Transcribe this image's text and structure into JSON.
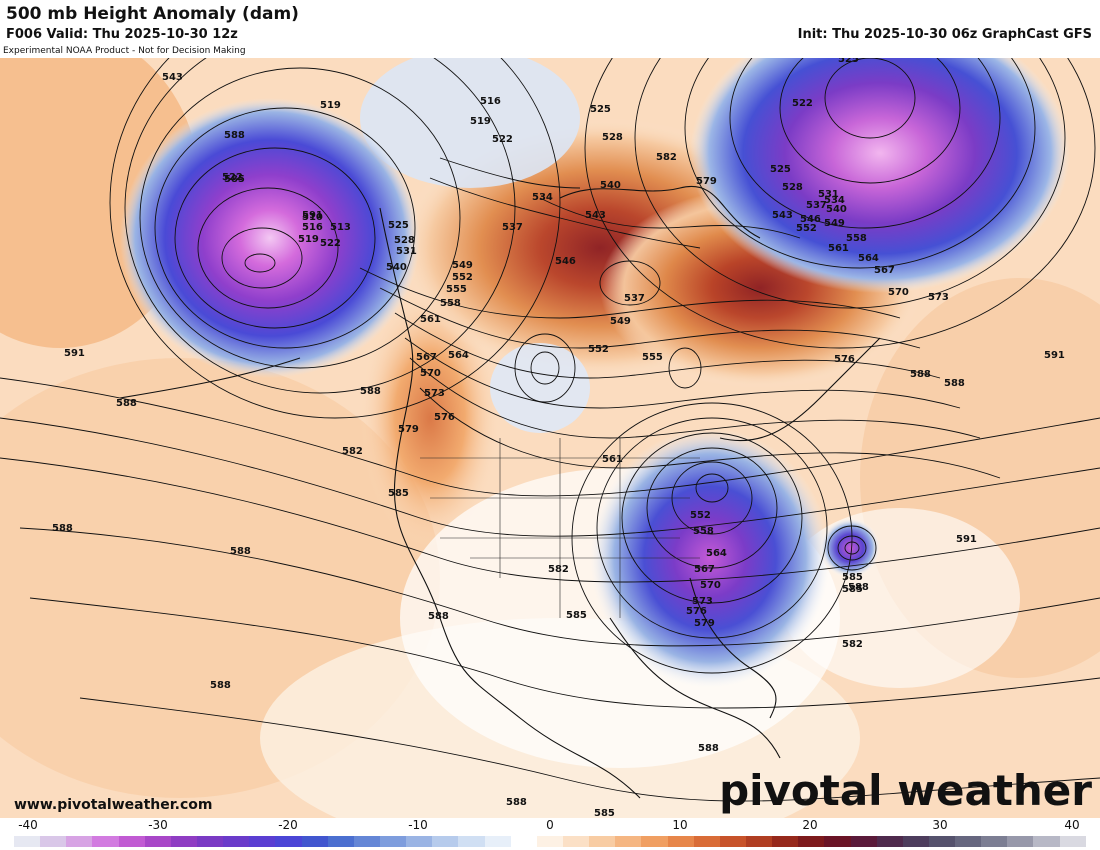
{
  "header": {
    "title": "500 mb Height Anomaly (dam)",
    "valid": "F006 Valid: Thu 2025-10-30 12z",
    "init": "Init: Thu 2025-10-30 06z GraphCast GFS",
    "disclaimer": "Experimental NOAA Product - Not for Decision Making"
  },
  "footer": {
    "website": "www.pivotalweather.com",
    "brand": "pivotal weather"
  },
  "colorbar": {
    "ticks": [
      "-40",
      "-30",
      "-20",
      "-10",
      "0",
      "10",
      "20",
      "30",
      "40"
    ],
    "colors": [
      "#e6e8f2",
      "#d9c7e8",
      "#d7a3e4",
      "#d27be0",
      "#c15bd3",
      "#a847c8",
      "#8f3dc3",
      "#7a3ac4",
      "#6a3bca",
      "#5a3ed2",
      "#4b45d6",
      "#4156cf",
      "#4b6fd0",
      "#6486d6",
      "#7e9ddd",
      "#9ab4e4",
      "#b6cbec",
      "#d0dff3",
      "#e7eff9",
      "#ffffff",
      "#fdf1e4",
      "#fbe0c6",
      "#f8cca3",
      "#f5b682",
      "#f09f62",
      "#e7864a",
      "#d96c37",
      "#c7532a",
      "#b03e22",
      "#96291c",
      "#7d1a1c",
      "#6a1426",
      "#5a1a3a",
      "#4f2a4d",
      "#4d3d5d",
      "#55526d",
      "#66677f",
      "#7c7e93",
      "#9798aa",
      "#b7b8c6",
      "#d9d9e1"
    ]
  },
  "map": {
    "contour_labels": [
      "543",
      "519",
      "516",
      "519",
      "522",
      "525",
      "528",
      "525",
      "522",
      "525",
      "528",
      "531",
      "534",
      "537",
      "540",
      "543",
      "546",
      "549",
      "552",
      "558",
      "561",
      "564",
      "567",
      "570",
      "573",
      "576",
      "579",
      "582",
      "585",
      "588",
      "591",
      "522",
      "510",
      "516",
      "513",
      "519",
      "522",
      "525",
      "528",
      "531",
      "540",
      "534",
      "546",
      "543",
      "537",
      "540",
      "549",
      "552",
      "555",
      "558",
      "561",
      "564",
      "567",
      "570",
      "573",
      "576",
      "579",
      "582",
      "585",
      "588",
      "591",
      "537",
      "549",
      "552",
      "555",
      "561",
      "552",
      "558",
      "564",
      "567",
      "570",
      "573",
      "576",
      "579",
      "582",
      "585",
      "588",
      "585",
      "591",
      "588",
      "588",
      "588",
      "588",
      "588",
      "588",
      "588",
      "588",
      "582",
      "585",
      "588",
      "591",
      "585"
    ]
  }
}
